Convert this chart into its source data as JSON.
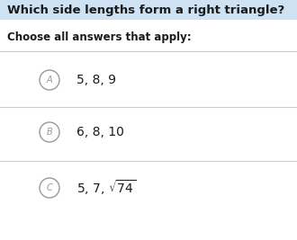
{
  "title": "Which side lengths form a right triangle?",
  "subtitle": "Choose all answers that apply:",
  "title_bg_color": "#cfe2f3",
  "bg_color": "#ffffff",
  "circle_color": "#999999",
  "line_color": "#cccccc",
  "title_fontsize": 9.5,
  "subtitle_fontsize": 8.5,
  "option_fontsize": 10,
  "label_fontsize": 7,
  "options": [
    {
      "label": "A",
      "text": "5, 8, 9",
      "sqrt": false
    },
    {
      "label": "B",
      "text": "6, 8, 10",
      "sqrt": false
    },
    {
      "label": "C",
      "text": "5, 7, $\\sqrt{74}$",
      "sqrt": true
    }
  ]
}
